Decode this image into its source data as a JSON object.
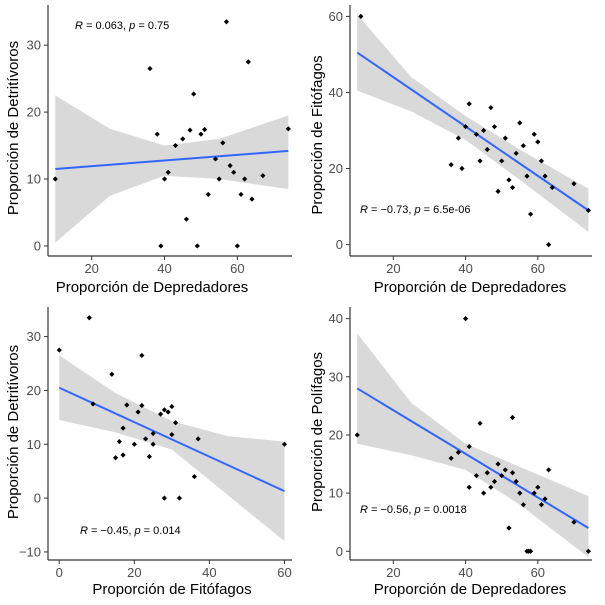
{
  "colors": {
    "band": "#d9d9d9",
    "line": "#3366ff",
    "points": "#000000",
    "axis": "#333333",
    "text": "#000000"
  },
  "chart_data": [
    {
      "type": "scatter",
      "id": "panel-1",
      "xlabel": "Proporción de Depredadores",
      "ylabel": "Proporción de Detritívoros",
      "xlim": [
        8,
        75
      ],
      "ylim": [
        -1.5,
        36
      ],
      "xticks": [
        20,
        40,
        60
      ],
      "yticks": [
        0,
        10,
        20,
        30
      ],
      "stats": {
        "r": "0.063",
        "p": "0.75"
      },
      "fit": {
        "x": [
          10,
          74
        ],
        "y": [
          11.5,
          14.2
        ]
      },
      "band_upper": {
        "x": [
          10,
          25,
          40,
          55,
          74
        ],
        "y": [
          22.5,
          17.5,
          15.0,
          16.0,
          19.5
        ]
      },
      "band_lower": {
        "x": [
          10,
          25,
          40,
          55,
          74
        ],
        "y": [
          0.5,
          7.5,
          10.5,
          10.0,
          8.5
        ]
      },
      "points": [
        {
          "x": 10,
          "y": 10
        },
        {
          "x": 36,
          "y": 26.5
        },
        {
          "x": 38,
          "y": 16.7
        },
        {
          "x": 39,
          "y": 0
        },
        {
          "x": 40,
          "y": 10
        },
        {
          "x": 41,
          "y": 11
        },
        {
          "x": 43,
          "y": 15
        },
        {
          "x": 45,
          "y": 16
        },
        {
          "x": 46,
          "y": 4
        },
        {
          "x": 47,
          "y": 17.3
        },
        {
          "x": 48,
          "y": 22.7
        },
        {
          "x": 49,
          "y": 0
        },
        {
          "x": 50,
          "y": 16.7
        },
        {
          "x": 51,
          "y": 17.4
        },
        {
          "x": 52,
          "y": 7.7
        },
        {
          "x": 54,
          "y": 13
        },
        {
          "x": 55,
          "y": 10
        },
        {
          "x": 56,
          "y": 15.4
        },
        {
          "x": 57,
          "y": 33.5
        },
        {
          "x": 58,
          "y": 12
        },
        {
          "x": 59,
          "y": 11
        },
        {
          "x": 60,
          "y": 0
        },
        {
          "x": 61,
          "y": 7.7
        },
        {
          "x": 62,
          "y": 10
        },
        {
          "x": 63,
          "y": 27.5
        },
        {
          "x": 64,
          "y": 7
        },
        {
          "x": 67,
          "y": 10.5
        },
        {
          "x": 74,
          "y": 17.5
        }
      ]
    },
    {
      "type": "scatter",
      "id": "panel-2",
      "xlabel": "Proporción de Depredadores",
      "ylabel": "Proporción de Fitófagos",
      "xlim": [
        8,
        75
      ],
      "ylim": [
        -3,
        63
      ],
      "xticks": [
        20,
        40,
        60
      ],
      "yticks": [
        0,
        20,
        40,
        60
      ],
      "stats": {
        "r": "−0.73",
        "p": "6.5e-06"
      },
      "fit": {
        "x": [
          10,
          74
        ],
        "y": [
          50.5,
          9.0
        ]
      },
      "band_upper": {
        "x": [
          10,
          25,
          40,
          55,
          74
        ],
        "y": [
          60.5,
          44.0,
          33.8,
          25.0,
          14.7
        ]
      },
      "band_lower": {
        "x": [
          10,
          25,
          40,
          55,
          74
        ],
        "y": [
          40.5,
          35.0,
          27.5,
          17.0,
          3.3
        ]
      },
      "points": [
        {
          "x": 11,
          "y": 60
        },
        {
          "x": 36,
          "y": 21
        },
        {
          "x": 38,
          "y": 28
        },
        {
          "x": 39,
          "y": 20
        },
        {
          "x": 40,
          "y": 31
        },
        {
          "x": 41,
          "y": 37
        },
        {
          "x": 43,
          "y": 29
        },
        {
          "x": 44,
          "y": 22
        },
        {
          "x": 45,
          "y": 30
        },
        {
          "x": 46,
          "y": 25
        },
        {
          "x": 47,
          "y": 36
        },
        {
          "x": 48,
          "y": 31
        },
        {
          "x": 49,
          "y": 14
        },
        {
          "x": 50,
          "y": 22
        },
        {
          "x": 51,
          "y": 28
        },
        {
          "x": 52,
          "y": 17
        },
        {
          "x": 53,
          "y": 15
        },
        {
          "x": 54,
          "y": 24
        },
        {
          "x": 55,
          "y": 32
        },
        {
          "x": 56,
          "y": 26
        },
        {
          "x": 57,
          "y": 18
        },
        {
          "x": 58,
          "y": 8
        },
        {
          "x": 59,
          "y": 29
        },
        {
          "x": 60,
          "y": 27
        },
        {
          "x": 61,
          "y": 22
        },
        {
          "x": 62,
          "y": 18
        },
        {
          "x": 63,
          "y": 0
        },
        {
          "x": 64,
          "y": 15
        },
        {
          "x": 70,
          "y": 16
        },
        {
          "x": 74,
          "y": 9
        }
      ]
    },
    {
      "type": "scatter",
      "id": "panel-3",
      "xlabel": "Proporción de Fitófagos",
      "ylabel": "Proporción de Detritívoros",
      "xlim": [
        -3,
        62
      ],
      "ylim": [
        -11.5,
        35.5
      ],
      "xticks": [
        0,
        20,
        40,
        60
      ],
      "yticks": [
        -10,
        0,
        10,
        20,
        30
      ],
      "stats": {
        "r": "−0.45",
        "p": "0.014"
      },
      "fit": {
        "x": [
          0,
          60
        ],
        "y": [
          20.5,
          1.3
        ]
      },
      "band_upper": {
        "x": [
          0,
          15,
          30,
          45,
          60
        ],
        "y": [
          26.5,
          19.5,
          14.3,
          11.5,
          10.5
        ]
      },
      "band_lower": {
        "x": [
          0,
          15,
          30,
          45,
          60
        ],
        "y": [
          14.5,
          12.2,
          9.0,
          0.5,
          -8.0
        ]
      },
      "points": [
        {
          "x": 0,
          "y": 27.5
        },
        {
          "x": 8,
          "y": 33.5
        },
        {
          "x": 9,
          "y": 17.5
        },
        {
          "x": 14,
          "y": 23
        },
        {
          "x": 15,
          "y": 7.5
        },
        {
          "x": 16,
          "y": 10.5
        },
        {
          "x": 17,
          "y": 8
        },
        {
          "x": 17,
          "y": 13
        },
        {
          "x": 18,
          "y": 17.3
        },
        {
          "x": 20,
          "y": 10
        },
        {
          "x": 21,
          "y": 16
        },
        {
          "x": 22,
          "y": 26.5
        },
        {
          "x": 22,
          "y": 17.2
        },
        {
          "x": 23,
          "y": 11
        },
        {
          "x": 24,
          "y": 7.7
        },
        {
          "x": 25,
          "y": 10
        },
        {
          "x": 25,
          "y": 12
        },
        {
          "x": 27,
          "y": 15.6
        },
        {
          "x": 28,
          "y": 16.4
        },
        {
          "x": 28,
          "y": 0
        },
        {
          "x": 29,
          "y": 16
        },
        {
          "x": 30,
          "y": 17
        },
        {
          "x": 30,
          "y": 11.8
        },
        {
          "x": 31,
          "y": 14
        },
        {
          "x": 32,
          "y": 0
        },
        {
          "x": 36,
          "y": 4
        },
        {
          "x": 37,
          "y": 11
        },
        {
          "x": 60,
          "y": 10
        }
      ]
    },
    {
      "type": "scatter",
      "id": "panel-4",
      "xlabel": "Proporción de Depredadores",
      "ylabel": "Proporción de Polífagos",
      "xlim": [
        8,
        75
      ],
      "ylim": [
        -1.5,
        42
      ],
      "xticks": [
        20,
        40,
        60
      ],
      "yticks": [
        0,
        10,
        20,
        30,
        40
      ],
      "stats": {
        "r": "−0.56",
        "p": "0.0018"
      },
      "fit": {
        "x": [
          10,
          74
        ],
        "y": [
          28.0,
          4.0
        ]
      },
      "band_upper": {
        "x": [
          10,
          25,
          40,
          55,
          74
        ],
        "y": [
          37.5,
          25.5,
          18.5,
          14.5,
          9.5
        ]
      },
      "band_lower": {
        "x": [
          10,
          25,
          40,
          55,
          74
        ],
        "y": [
          18.5,
          16.5,
          14.0,
          8.0,
          -1.0
        ]
      },
      "points": [
        {
          "x": 10,
          "y": 20
        },
        {
          "x": 36,
          "y": 16
        },
        {
          "x": 38,
          "y": 17
        },
        {
          "x": 40,
          "y": 40
        },
        {
          "x": 41,
          "y": 18
        },
        {
          "x": 41,
          "y": 11
        },
        {
          "x": 43,
          "y": 13
        },
        {
          "x": 44,
          "y": 22
        },
        {
          "x": 45,
          "y": 10
        },
        {
          "x": 46,
          "y": 13.5
        },
        {
          "x": 47,
          "y": 11
        },
        {
          "x": 48,
          "y": 12
        },
        {
          "x": 49,
          "y": 15
        },
        {
          "x": 50,
          "y": 13
        },
        {
          "x": 51,
          "y": 14
        },
        {
          "x": 52,
          "y": 4
        },
        {
          "x": 53,
          "y": 23
        },
        {
          "x": 53,
          "y": 13.5
        },
        {
          "x": 54,
          "y": 12
        },
        {
          "x": 55,
          "y": 10
        },
        {
          "x": 56,
          "y": 8
        },
        {
          "x": 57,
          "y": 0
        },
        {
          "x": 57.5,
          "y": 0
        },
        {
          "x": 58,
          "y": 0
        },
        {
          "x": 59,
          "y": 10
        },
        {
          "x": 60,
          "y": 11
        },
        {
          "x": 61,
          "y": 8
        },
        {
          "x": 62,
          "y": 9
        },
        {
          "x": 63,
          "y": 14
        },
        {
          "x": 70,
          "y": 5
        },
        {
          "x": 74,
          "y": 0
        }
      ]
    }
  ]
}
